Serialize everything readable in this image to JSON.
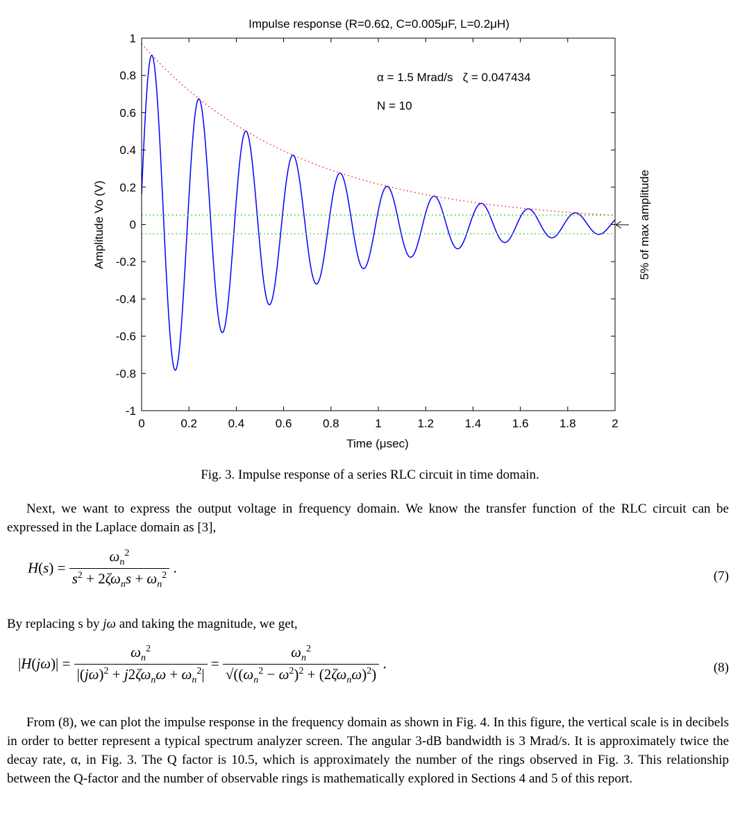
{
  "figure": {
    "chart_data": {
      "type": "line",
      "title": "Impulse response (R=0.6Ω, C=0.005μF, L=0.2μH)",
      "xlabel": "Time (μsec)",
      "ylabel": "Amplitude Vo (V)",
      "right_label": "5% of max amplitude",
      "xlim": [
        0,
        2
      ],
      "ylim": [
        -1,
        1
      ],
      "xticks": [
        "0",
        "0.2",
        "0.4",
        "0.6",
        "0.8",
        "1",
        "1.2",
        "1.4",
        "1.6",
        "1.8",
        "2"
      ],
      "yticks": [
        "1",
        "0.8",
        "0.6",
        "0.4",
        "0.2",
        "0",
        "-0.2",
        "-0.4",
        "-0.6",
        "-0.8",
        "-1"
      ],
      "grid": false,
      "annotation_alpha": "α = 1.5 Mrad/s   ζ = 0.047434",
      "annotation_n": "N = 10",
      "series": [
        {
          "role": "response",
          "color": "#0000ff",
          "style": "solid",
          "amplitude": 0.97,
          "decay_rate_per_us": 1.5,
          "angular_freq_rad_per_us": 31.6
        },
        {
          "role": "envelope",
          "color": "#ff0000",
          "style": "dotted",
          "start": 0.97,
          "decay_rate_per_us": 1.5
        },
        {
          "role": "threshold-upper",
          "color": "#00cc00",
          "style": "dotted",
          "value": 0.05
        },
        {
          "role": "threshold-lower",
          "color": "#00cc00",
          "style": "dotted",
          "value": -0.05
        }
      ]
    },
    "caption": "Fig. 3. Impulse response of a series RLC circuit in time domain."
  },
  "text": {
    "para1": "Next, we want to express the output voltage in frequency domain. We know the transfer function of the RLC circuit can be expressed in the Laplace domain as [3],",
    "eq7_number": "(7)",
    "para2_before": "By replacing s by ",
    "para2_math": "jω",
    "para2_after": " and taking the magnitude, we get,",
    "eq8_number": "(8)",
    "para3": "From (8), we can plot the impulse response in the frequency domain as shown in Fig. 4. In this figure, the vertical scale is in decibels in order to better represent a typical spectrum analyzer screen. The angular 3-dB bandwidth is 3 Mrad/s. It is approximately twice the decay rate, α, in Fig. 3. The Q factor is 10.5, which is approximately the number of the rings observed in Fig. 3. This relationship between the Q-factor and the number of observable rings is mathematically explored in Sections 4 and 5 of this report."
  }
}
